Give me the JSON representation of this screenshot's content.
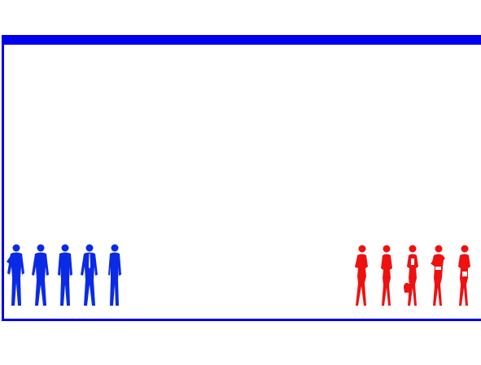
{
  "colors": {
    "frame": "#0000ee",
    "men": "#0a2ae6",
    "women": "#ee1111",
    "background": "#ffffff"
  },
  "men": {
    "count": 5,
    "icon": "man-silhouette-icon"
  },
  "women": {
    "count": 5,
    "icon": "woman-silhouette-icon"
  }
}
